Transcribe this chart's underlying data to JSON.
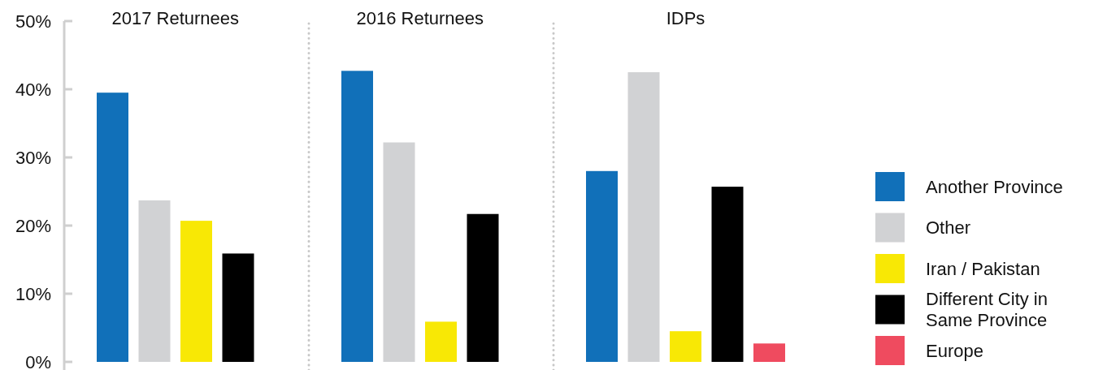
{
  "chart_data": {
    "type": "bar",
    "categories": [
      "2017 Returnees",
      "2016 Returnees",
      "IDPs"
    ],
    "ylim": [
      0,
      50
    ],
    "yticks": [
      {
        "value": 0,
        "label": "0%"
      },
      {
        "value": 10,
        "label": "10%"
      },
      {
        "value": 20,
        "label": "20%"
      },
      {
        "value": 30,
        "label": "30%"
      },
      {
        "value": 40,
        "label": "40%"
      },
      {
        "value": 50,
        "label": "50%"
      }
    ],
    "legend": "right",
    "series": [
      {
        "name": "Another Province",
        "color": "#1170b9",
        "values": [
          39.5,
          42.7,
          28.0
        ]
      },
      {
        "name": "Other",
        "color": "#d1d2d4",
        "values": [
          23.7,
          32.2,
          42.5
        ]
      },
      {
        "name": "Iran / Pakistan",
        "color": "#f8e805",
        "values": [
          20.7,
          5.9,
          4.5
        ]
      },
      {
        "name": "Different City in Same Province",
        "color": "#000000",
        "values": [
          15.9,
          21.7,
          25.7
        ]
      },
      {
        "name": "Europe",
        "color": "#ef4b5f",
        "values": [
          null,
          null,
          2.7
        ]
      }
    ]
  }
}
